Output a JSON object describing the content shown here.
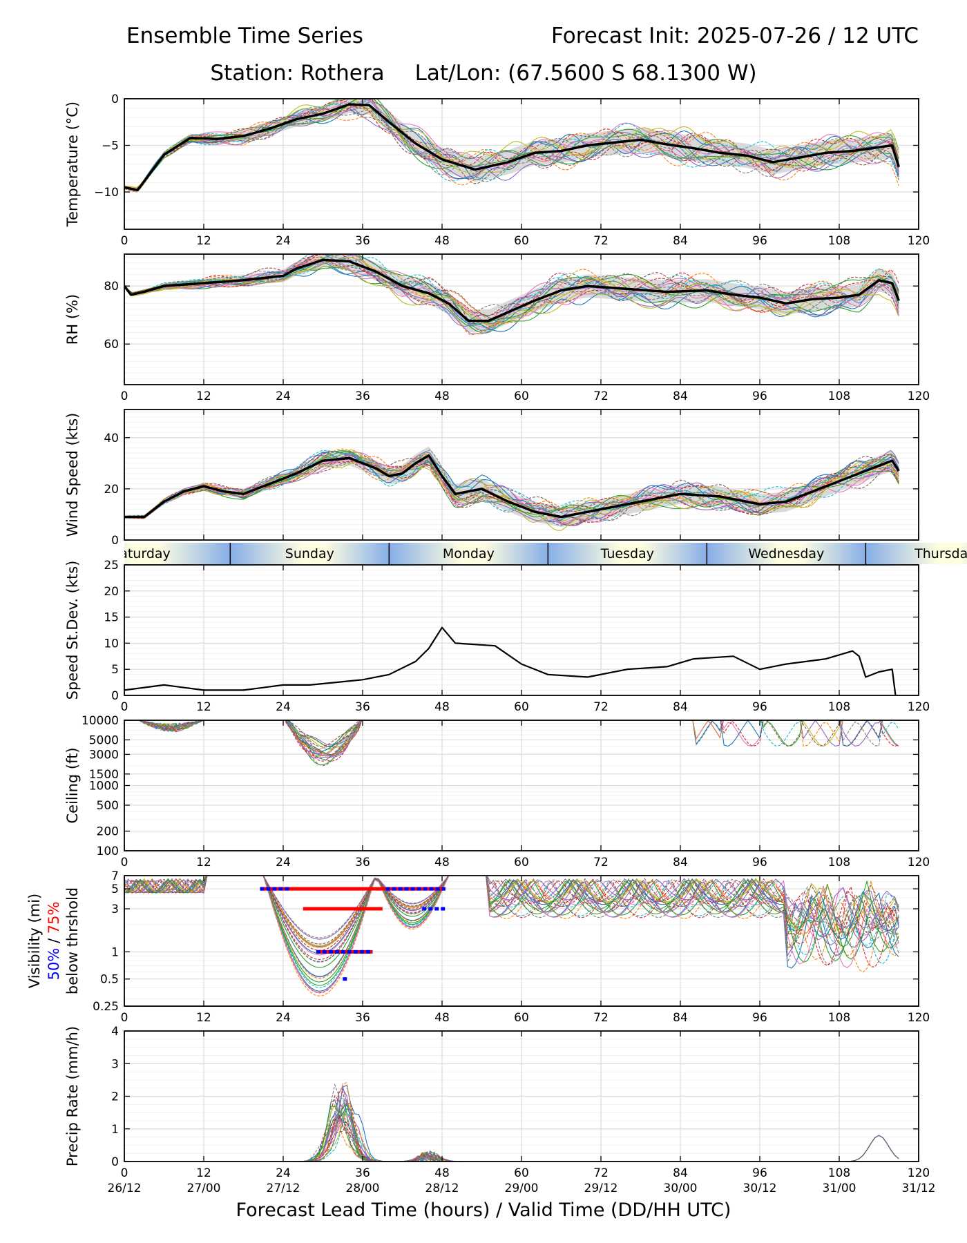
{
  "header": {
    "title": "Ensemble Time Series",
    "init": "Forecast Init: 2025-07-26 / 12 UTC",
    "station": "Station: Rothera",
    "latlon": "Lat/Lon: (67.5600 S 68.1300 W)"
  },
  "xaxis_label": "Forecast Lead Time (hours) / Valid Time (DD/HH UTC)",
  "chart_data": [
    {
      "type": "line",
      "id": "temperature",
      "ylabel": "Temperature (°C)",
      "ylim": [
        -14,
        0
      ],
      "yticks": [
        0,
        -5,
        -10
      ],
      "xlim": [
        0,
        120
      ],
      "xticks": [
        0,
        12,
        24,
        36,
        48,
        60,
        72,
        84,
        96,
        108,
        120
      ],
      "grid": true,
      "mean_x": [
        0,
        2,
        6,
        10,
        14,
        18,
        22,
        26,
        30,
        34,
        37,
        40,
        44,
        48,
        53,
        58,
        62,
        66,
        70,
        74,
        78,
        82,
        86,
        90,
        94,
        98,
        102,
        106,
        110,
        114,
        116,
        116.5,
        117
      ],
      "mean_y": [
        -9.5,
        -9.8,
        -6,
        -4.2,
        -4.3,
        -4.0,
        -3.2,
        -2.2,
        -1.6,
        -0.6,
        -0.7,
        -2.5,
        -4.8,
        -6.5,
        -7.6,
        -6.8,
        -5.8,
        -5.6,
        -5.0,
        -4.7,
        -4.4,
        -4.9,
        -5.3,
        -5.8,
        -6.1,
        -6.8,
        -6.3,
        -5.8,
        -5.6,
        -5.2,
        -5.0,
        -6.2,
        -7.3
      ]
    },
    {
      "type": "line",
      "id": "relative-humidity",
      "ylabel": "RH (%)",
      "ylim": [
        46,
        91
      ],
      "yticks": [
        80,
        60
      ],
      "xlim": [
        0,
        120
      ],
      "xticks": [
        0,
        12,
        24,
        36,
        48,
        60,
        72,
        84,
        96,
        108,
        120
      ],
      "grid": true,
      "mean_x": [
        0,
        1,
        3,
        6,
        12,
        18,
        24,
        26,
        30,
        34,
        38,
        42,
        46,
        49,
        52,
        55,
        58,
        62,
        66,
        70,
        76,
        82,
        88,
        92,
        96,
        100,
        104,
        108,
        111,
        114,
        116,
        117
      ],
      "mean_y": [
        80,
        77,
        78,
        80,
        81,
        82,
        83.5,
        86,
        89,
        88.5,
        85,
        80,
        77.5,
        74,
        68,
        68,
        71,
        75,
        78.5,
        80,
        79,
        78,
        78.5,
        77,
        76,
        74,
        75.5,
        76,
        77,
        82,
        81,
        75
      ]
    },
    {
      "type": "line",
      "id": "wind-speed",
      "ylabel": "Wind Speed (kts)",
      "ylim": [
        0,
        51
      ],
      "yticks": [
        0,
        20,
        40
      ],
      "xlim": [
        0,
        120
      ],
      "xticks": [
        0,
        12,
        24,
        36,
        48,
        60,
        72,
        84,
        96,
        108,
        120
      ],
      "grid": true,
      "mean_x": [
        0,
        3,
        6,
        9,
        12,
        15,
        18,
        22,
        26,
        30,
        34,
        38,
        40,
        42,
        44,
        46,
        48,
        50,
        54,
        58,
        62,
        66,
        72,
        78,
        84,
        90,
        96,
        100,
        104,
        108,
        112,
        115,
        116,
        117
      ],
      "mean_y": [
        9,
        9,
        15,
        19,
        21,
        19,
        18,
        22,
        26,
        31,
        32,
        28,
        25,
        26,
        30,
        33,
        25,
        18,
        20,
        15,
        11,
        9,
        12,
        15,
        18,
        17,
        14,
        15,
        19,
        23,
        27,
        30,
        31,
        27
      ]
    },
    {
      "type": "line",
      "id": "speed-stdev",
      "ylabel": "Speed St.Dev. (kts)",
      "ylim": [
        0,
        25
      ],
      "yticks": [
        0,
        5,
        10,
        15,
        20,
        25
      ],
      "xlim": [
        0,
        120
      ],
      "xticks": [
        0,
        12,
        24,
        36,
        48,
        60,
        72,
        84,
        96,
        108,
        120
      ],
      "grid": true,
      "x": [
        0,
        6,
        12,
        18,
        24,
        28,
        32,
        36,
        40,
        44,
        46,
        48,
        50,
        56,
        60,
        64,
        70,
        76,
        82,
        86,
        92,
        96,
        100,
        106,
        110,
        111,
        112,
        114,
        116,
        116.5
      ],
      "y": [
        1,
        2,
        1,
        1,
        2,
        2,
        2.5,
        3,
        4,
        6.5,
        9,
        13,
        10,
        9.5,
        6,
        4,
        3.5,
        5,
        5.5,
        7,
        7.5,
        5,
        6,
        7,
        8.5,
        7.5,
        3.5,
        4.5,
        5,
        0
      ]
    },
    {
      "type": "line",
      "id": "ceiling",
      "ylabel": "Ceiling (ft)",
      "scale": "log",
      "ylim": [
        100,
        10000
      ],
      "yticks": [
        10000,
        5000,
        3000,
        1500,
        1000,
        500,
        200,
        100
      ],
      "xlim": [
        0,
        120
      ],
      "xticks": [
        0,
        12,
        24,
        36,
        48,
        60,
        72,
        84,
        96,
        108,
        120
      ],
      "grid": true
    },
    {
      "type": "line",
      "id": "visibility",
      "ylabel": "Visibility (mi)",
      "ylabel_50": "50%",
      "ylabel_sep": " / ",
      "ylabel_75": "75%",
      "ylabel_line3": "below thrshold",
      "scale": "log",
      "ylim": [
        0.25,
        7
      ],
      "yticks": [
        7,
        5,
        3,
        1,
        0.5,
        0.25
      ],
      "xlim": [
        0,
        120
      ],
      "xticks": [
        0,
        12,
        24,
        36,
        48,
        60,
        72,
        84,
        96,
        108,
        120
      ],
      "grid": true,
      "threshold_75": [
        {
          "threshold": 5,
          "start": 20.5,
          "end": 48.5
        },
        {
          "threshold": 3,
          "start": 27,
          "end": 39
        },
        {
          "threshold": 1,
          "start": 29,
          "end": 37.5
        }
      ],
      "threshold_50": [
        {
          "threshold": 5,
          "start": 20.5,
          "end": 25
        },
        {
          "threshold": 5,
          "start": 39.5,
          "end": 48.5
        },
        {
          "threshold": 3,
          "start": 45,
          "end": 48.5
        },
        {
          "threshold": 1,
          "start": 29,
          "end": 37.5
        },
        {
          "threshold": 0.5,
          "start": 33,
          "end": 33.8
        }
      ]
    },
    {
      "type": "line",
      "id": "precip-rate",
      "ylabel": "Precip Rate (mm/h)",
      "ylim": [
        0,
        4
      ],
      "yticks": [
        0,
        1,
        2,
        3,
        4
      ],
      "xlim": [
        0,
        120
      ],
      "xticks": [
        0,
        12,
        24,
        36,
        48,
        60,
        72,
        84,
        96,
        108,
        120
      ],
      "xticklabels_valid": [
        "26/12",
        "27/00",
        "27/12",
        "28/00",
        "28/12",
        "29/00",
        "29/12",
        "30/00",
        "30/12",
        "31/00",
        "31/12"
      ],
      "grid": true
    }
  ],
  "day_band": {
    "days": [
      {
        "label": "Saturday",
        "start": -11,
        "end": 16
      },
      {
        "label": "Sunday",
        "start": 16,
        "end": 40
      },
      {
        "label": "Monday",
        "start": 40,
        "end": 64
      },
      {
        "label": "Tuesday",
        "start": 64,
        "end": 88
      },
      {
        "label": "Wednesday",
        "start": 88,
        "end": 112
      },
      {
        "label": "Thursday",
        "start": 112,
        "end": 136
      }
    ],
    "colors": {
      "night": "#87aee8",
      "day": "#fdfde0"
    }
  },
  "colors": {
    "mean": "#000000",
    "spread": "#d9d9d9",
    "threshold_50": "#0000ff",
    "threshold_75": "#ff0000",
    "members": [
      "#1f77b4",
      "#ff7f0e",
      "#2ca02c",
      "#d62728",
      "#9467bd",
      "#8c564b",
      "#e377c2",
      "#7f7f7f",
      "#bcbd22",
      "#17becf"
    ]
  }
}
